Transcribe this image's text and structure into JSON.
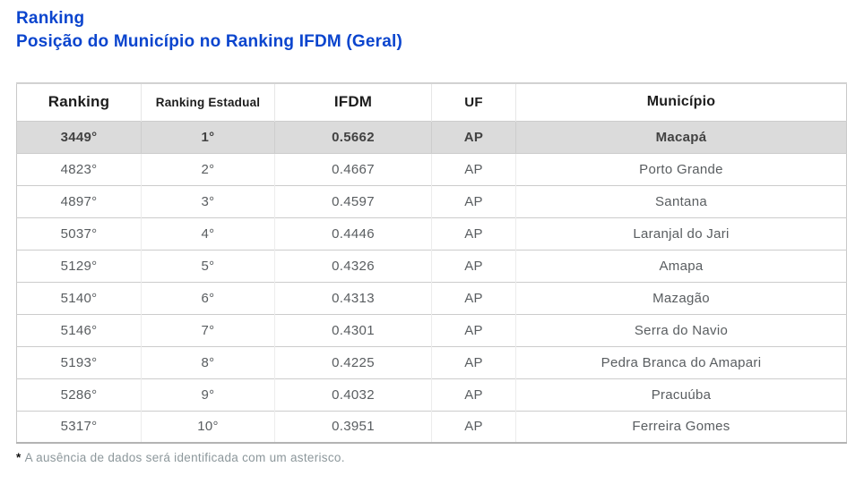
{
  "header": {
    "title": "Ranking",
    "subtitle": "Posição do Município no Ranking IFDM (Geral)"
  },
  "table": {
    "columns": [
      "Ranking",
      "Ranking Estadual",
      "IFDM",
      "UF",
      "Município"
    ],
    "rows": [
      {
        "ranking": "3449°",
        "ranking_estadual": "1°",
        "ifdm": "0.5662",
        "uf": "AP",
        "municipio": "Macapá",
        "highlighted": true
      },
      {
        "ranking": "4823°",
        "ranking_estadual": "2°",
        "ifdm": "0.4667",
        "uf": "AP",
        "municipio": "Porto Grande"
      },
      {
        "ranking": "4897°",
        "ranking_estadual": "3°",
        "ifdm": "0.4597",
        "uf": "AP",
        "municipio": "Santana"
      },
      {
        "ranking": "5037°",
        "ranking_estadual": "4°",
        "ifdm": "0.4446",
        "uf": "AP",
        "municipio": "Laranjal do Jari"
      },
      {
        "ranking": "5129°",
        "ranking_estadual": "5°",
        "ifdm": "0.4326",
        "uf": "AP",
        "municipio": "Amapa"
      },
      {
        "ranking": "5140°",
        "ranking_estadual": "6°",
        "ifdm": "0.4313",
        "uf": "AP",
        "municipio": "Mazagão"
      },
      {
        "ranking": "5146°",
        "ranking_estadual": "7°",
        "ifdm": "0.4301",
        "uf": "AP",
        "municipio": "Serra do Navio"
      },
      {
        "ranking": "5193°",
        "ranking_estadual": "8°",
        "ifdm": "0.4225",
        "uf": "AP",
        "municipio": "Pedra Branca do Amapari"
      },
      {
        "ranking": "5286°",
        "ranking_estadual": "9°",
        "ifdm": "0.4032",
        "uf": "AP",
        "municipio": "Pracuúba"
      },
      {
        "ranking": "5317°",
        "ranking_estadual": "10°",
        "ifdm": "0.3951",
        "uf": "AP",
        "municipio": "Ferreira Gomes"
      }
    ]
  },
  "footnote": {
    "marker": "*",
    "text": "A ausência de dados será identificada com um asterisco."
  },
  "colors": {
    "title_blue": "#0B45CE",
    "highlight_row_bg": "#DBDBDB",
    "row_border": "#CCCCCC",
    "header_text": "#1D1D1D",
    "row_text": "#595D60",
    "footnote_text": "#8C979B"
  }
}
